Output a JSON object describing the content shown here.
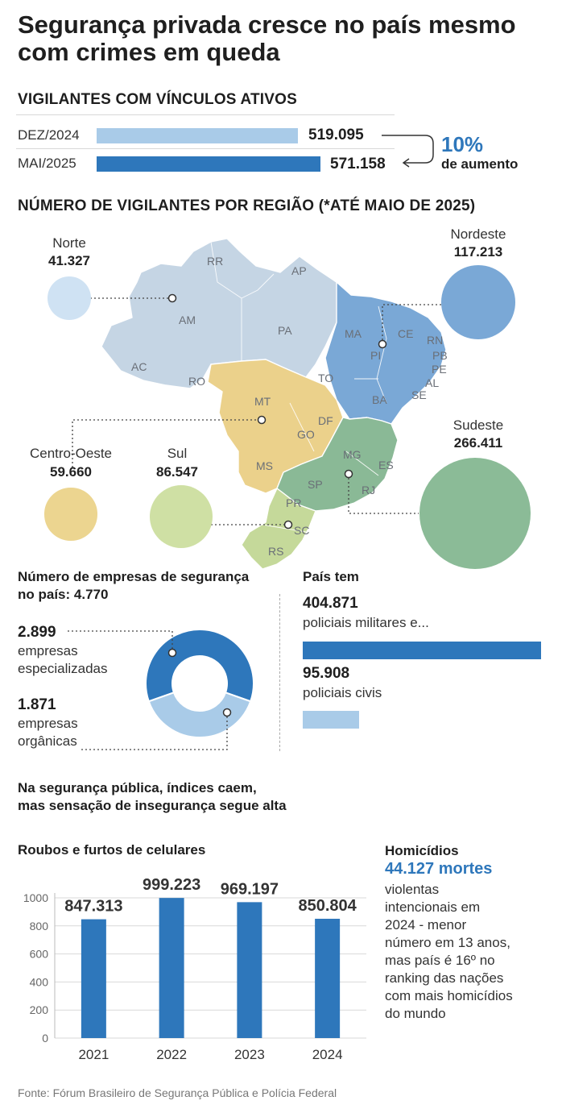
{
  "title": "Segurança privada cresce no país mesmo com crimes em queda",
  "vigilantes": {
    "heading": "VIGILANTES COM VÍNCULOS ATIVOS",
    "rows": [
      {
        "label": "DEZ/2024",
        "value": "519.095",
        "amount": 519095,
        "color": "#a9cbe8"
      },
      {
        "label": "MAI/2025",
        "value": "571.158",
        "amount": 571158,
        "color": "#2e77bb"
      }
    ],
    "increase_pct": "10%",
    "increase_label": "de aumento"
  },
  "regions": {
    "heading": "NÚMERO DE VIGILANTES POR REGIÃO (*ATÉ MAIO DE 2025)",
    "items": [
      {
        "name": "Norte",
        "value": "41.327",
        "amount": 41327,
        "color": "#cfe2f3"
      },
      {
        "name": "Nordeste",
        "value": "117.213",
        "amount": 117213,
        "color": "#7aa8d6"
      },
      {
        "name": "Centro-Oeste",
        "value": "59.660",
        "amount": 59660,
        "color": "#ecd590"
      },
      {
        "name": "Sul",
        "value": "86.547",
        "amount": 86547,
        "color": "#cfe0a4"
      },
      {
        "name": "Sudeste",
        "value": "266.411",
        "amount": 266411,
        "color": "#8bbb97"
      }
    ],
    "states": [
      "RR",
      "AP",
      "AM",
      "PA",
      "AC",
      "RO",
      "MA",
      "CE",
      "RN",
      "PB",
      "PE",
      "PI",
      "AL",
      "SE",
      "TO",
      "BA",
      "MT",
      "DF",
      "GO",
      "MG",
      "ES",
      "MS",
      "SP",
      "RJ",
      "PR",
      "SC",
      "RS"
    ]
  },
  "empresas": {
    "heading": "Número de empresas de segurança no país: 4.770",
    "total": 4770,
    "items": [
      {
        "value": "2.899",
        "label1": "empresas",
        "label2": "especializadas",
        "amount": 2899,
        "color": "#2e77bb"
      },
      {
        "value": "1.871",
        "label1": "empresas",
        "label2": "orgânicas",
        "amount": 1871,
        "color": "#a9cbe8"
      }
    ]
  },
  "pais": {
    "heading": "País tem",
    "items": [
      {
        "value": "404.871",
        "label": "policiais militares e...",
        "amount": 404871,
        "color": "#2e77bb"
      },
      {
        "value": "95.908",
        "label": "policiais civis",
        "amount": 95908,
        "color": "#a9cbe8"
      }
    ]
  },
  "seguranca": {
    "heading_line1": "Na segurança pública, índices caem,",
    "heading_line2": "mas sensação de insegurança segue alta"
  },
  "chart_data": {
    "type": "bar",
    "title": "Roubos e furtos de celulares",
    "categories": [
      "2021",
      "2022",
      "2023",
      "2024"
    ],
    "values": [
      847.313,
      999.223,
      969.197,
      850.804
    ],
    "value_labels": [
      "847.313",
      "999.223",
      "969.197",
      "850.804"
    ],
    "yticks": [
      "0",
      "200",
      "400",
      "600",
      "800",
      "1000"
    ],
    "ylim": [
      0,
      1000
    ],
    "xlabel": "",
    "ylabel": "",
    "bar_color": "#2e77bb",
    "grid": true
  },
  "homicidios": {
    "heading": "Homicídios",
    "highlight": "44.127 mortes",
    "lines": [
      "violentas",
      "intencionais em",
      "2024 - menor",
      "número em 13 anos,",
      "mas país é 16º no",
      "ranking das nações",
      "com mais homicídios",
      "do mundo"
    ]
  },
  "source": "Fonte: Fórum Brasileiro de Segurança Pública e Polícia Federal",
  "colors": {
    "dark_blue": "#2e77bb",
    "light_blue": "#a9cbe8",
    "accent_text": "#2e77bb"
  }
}
